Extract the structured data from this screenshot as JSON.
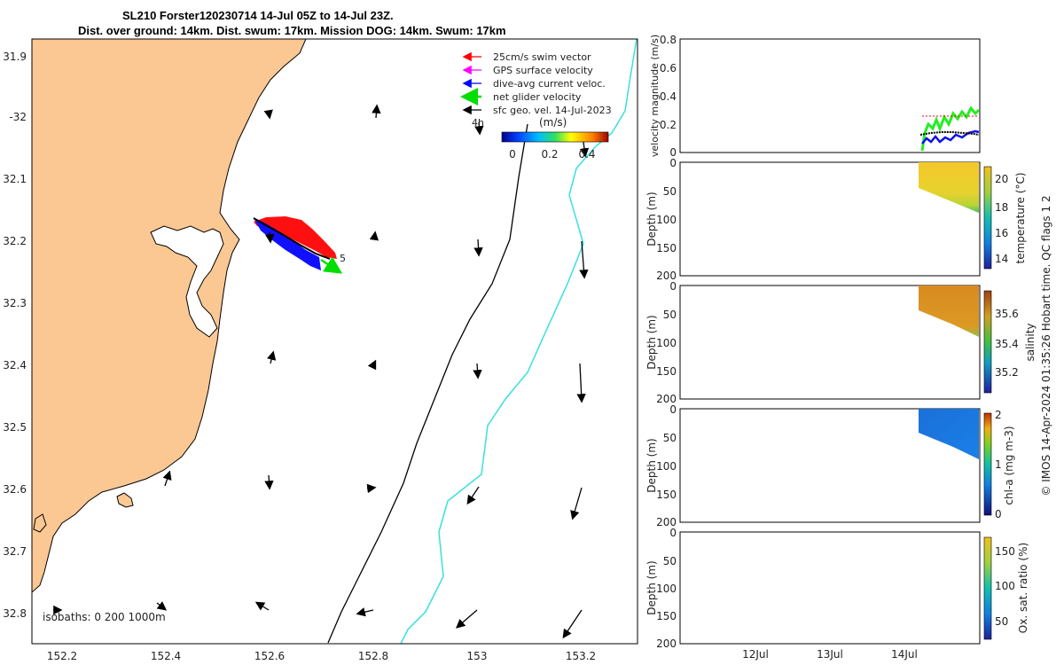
{
  "title": {
    "line1": "SL210 Forster120230714 14-Jul 05Z to 14-Jul 23Z.",
    "line2": "Dist. over ground: 14km. Dist. swum: 17km. Mission DOG: 14km. Swum: 17km"
  },
  "map": {
    "lat_ticks": [
      "31.9",
      "-32",
      "32.1",
      "32.2",
      "32.3",
      "32.4",
      "32.5",
      "32.6",
      "32.7",
      "32.8"
    ],
    "lon_ticks": [
      "152.2",
      "152.4",
      "152.6",
      "152.8",
      "153",
      "153.2"
    ],
    "legend": [
      {
        "label": "25cm/s swim vector",
        "color": "#ff0000"
      },
      {
        "label": "GPS surface velocity",
        "color": "#ff00ff"
      },
      {
        "label": "dive-avg current veloc.",
        "color": "#0000ff"
      },
      {
        "label": "net glider velocity",
        "color": "#00dd00"
      },
      {
        "label": "sfc geo. vel. 14-Jul-2023",
        "color": "#000000"
      }
    ],
    "colorbar": {
      "unit": "(m/s)",
      "ticks": [
        "0",
        "0.2",
        "0.4"
      ],
      "above_label": "4h"
    },
    "isobaths": "isobaths: 0   200  1000m",
    "track_label": "5",
    "land_color": "#fbc894"
  },
  "panels": {
    "velocity": {
      "ylabel": "velocity magnitude (m/s)",
      "ticks": [
        "0.8",
        "0.6",
        "0.4",
        "0.2",
        "0"
      ]
    },
    "depth_ticks": [
      "0",
      "50",
      "100",
      "150",
      "200"
    ],
    "depth_label": "Depth (m)",
    "temperature": {
      "label": "temperature (°C)",
      "ticks": [
        "20",
        "18",
        "16",
        "14"
      ]
    },
    "salinity": {
      "label": "salinity",
      "ticks": [
        "35.6",
        "35.4",
        "35.2"
      ]
    },
    "chla": {
      "label": "chl-a (mg m-3)",
      "ticks": [
        "2",
        "1",
        "0"
      ]
    },
    "oxygen": {
      "label": "Ox. sat. ratio (%)",
      "ticks": [
        "150",
        "100",
        "50"
      ]
    },
    "time_ticks": [
      "12Jul",
      "13Jul",
      "14Jul"
    ]
  },
  "side_note": "© IMOS 14-Apr-2024 01:35:26 Hobart time. QC flags 1  2"
}
